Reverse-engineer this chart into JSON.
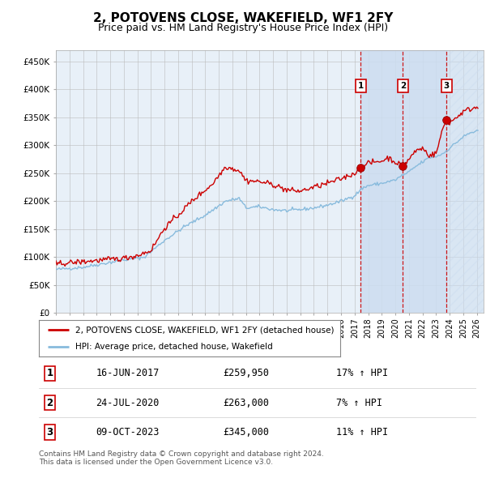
{
  "title": "2, POTOVENS CLOSE, WAKEFIELD, WF1 2FY",
  "subtitle": "Price paid vs. HM Land Registry's House Price Index (HPI)",
  "title_fontsize": 11,
  "subtitle_fontsize": 9,
  "yticks": [
    0,
    50000,
    100000,
    150000,
    200000,
    250000,
    300000,
    350000,
    400000,
    450000
  ],
  "ytick_labels": [
    "£0",
    "£50K",
    "£100K",
    "£150K",
    "£200K",
    "£250K",
    "£300K",
    "£350K",
    "£400K",
    "£450K"
  ],
  "xlim_start": 1995.0,
  "xlim_end": 2026.5,
  "ylim_min": 0,
  "ylim_max": 470000,
  "hpi_color": "#88bbdd",
  "price_color": "#cc0000",
  "grid_color": "#bbbbbb",
  "bg_color": "#ffffff",
  "plot_bg_color": "#e8f0f8",
  "sale_dates": [
    2017.46,
    2020.56,
    2023.77
  ],
  "sale_prices": [
    259950,
    263000,
    345000
  ],
  "sale_labels": [
    "1",
    "2",
    "3"
  ],
  "vline_color": "#cc0000",
  "shade_color": "#ccddf0",
  "legend_price_label": "2, POTOVENS CLOSE, WAKEFIELD, WF1 2FY (detached house)",
  "legend_hpi_label": "HPI: Average price, detached house, Wakefield",
  "table_data": [
    [
      "1",
      "16-JUN-2017",
      "£259,950",
      "17% ↑ HPI"
    ],
    [
      "2",
      "24-JUL-2020",
      "£263,000",
      "7% ↑ HPI"
    ],
    [
      "3",
      "09-OCT-2023",
      "£345,000",
      "11% ↑ HPI"
    ]
  ],
  "footnote": "Contains HM Land Registry data © Crown copyright and database right 2024.\nThis data is licensed under the Open Government Licence v3.0.",
  "box_color": "#cc0000"
}
